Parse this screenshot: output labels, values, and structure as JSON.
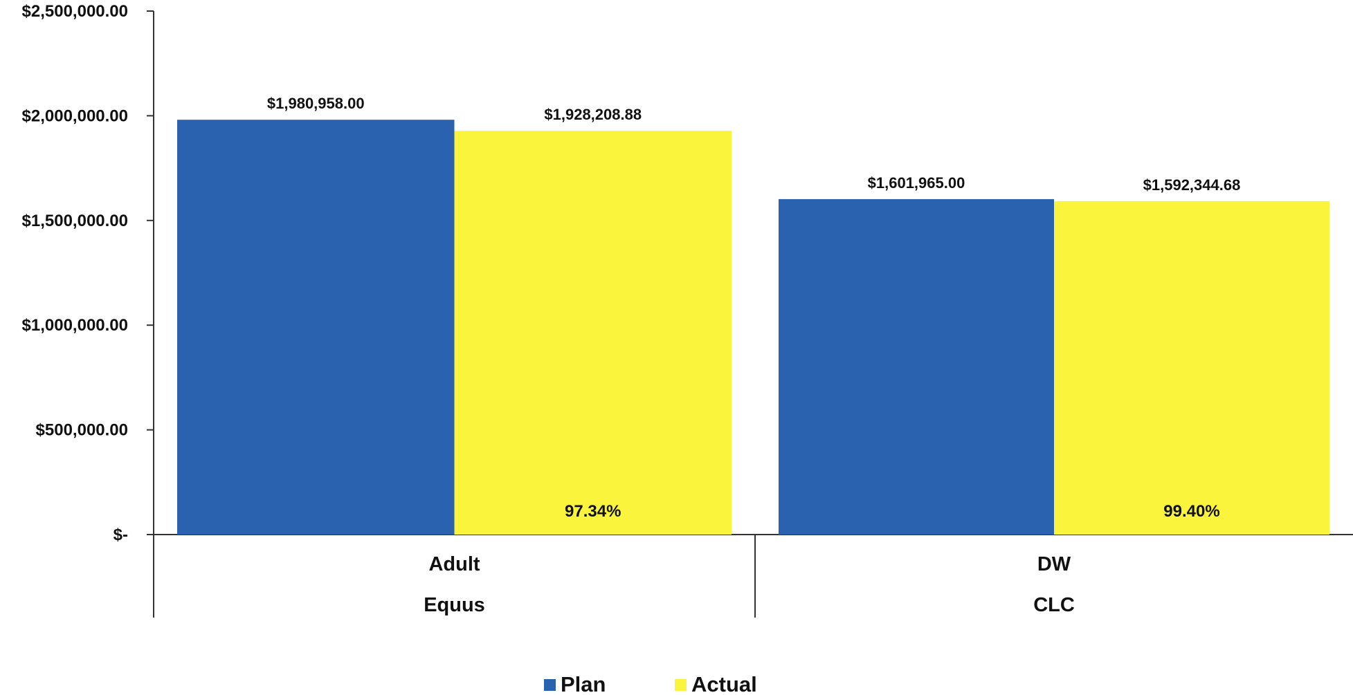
{
  "chart_data": {
    "type": "bar",
    "title": "",
    "xlabel": "",
    "ylabel": "",
    "ylim": [
      0,
      2500000
    ],
    "y_ticks": [
      {
        "value": 2500000,
        "label": "$2,500,000.00"
      },
      {
        "value": 2000000,
        "label": "$2,000,000.00"
      },
      {
        "value": 1500000,
        "label": "$1,500,000.00"
      },
      {
        "value": 1000000,
        "label": "$1,000,000.00"
      },
      {
        "value": 500000,
        "label": "$500,000.00"
      },
      {
        "value": 0,
        "label": "$-"
      }
    ],
    "categories": [
      {
        "label": "Adult",
        "group": "Equus"
      },
      {
        "label": "DW",
        "group": "CLC"
      }
    ],
    "series": [
      {
        "name": "Plan",
        "color": "#2a62b0",
        "values": [
          1980958.0,
          1601965.0
        ],
        "labels": [
          "$1,980,958.00",
          "$1,601,965.00"
        ]
      },
      {
        "name": "Actual",
        "color": "#fbf43c",
        "values": [
          1928208.88,
          1592344.68
        ],
        "labels": [
          "$1,928,208.88",
          "$1,592,344.68"
        ]
      }
    ],
    "percent_labels": [
      "97.34%",
      "99.40%"
    ],
    "grid": false,
    "legend_position": "bottom"
  }
}
